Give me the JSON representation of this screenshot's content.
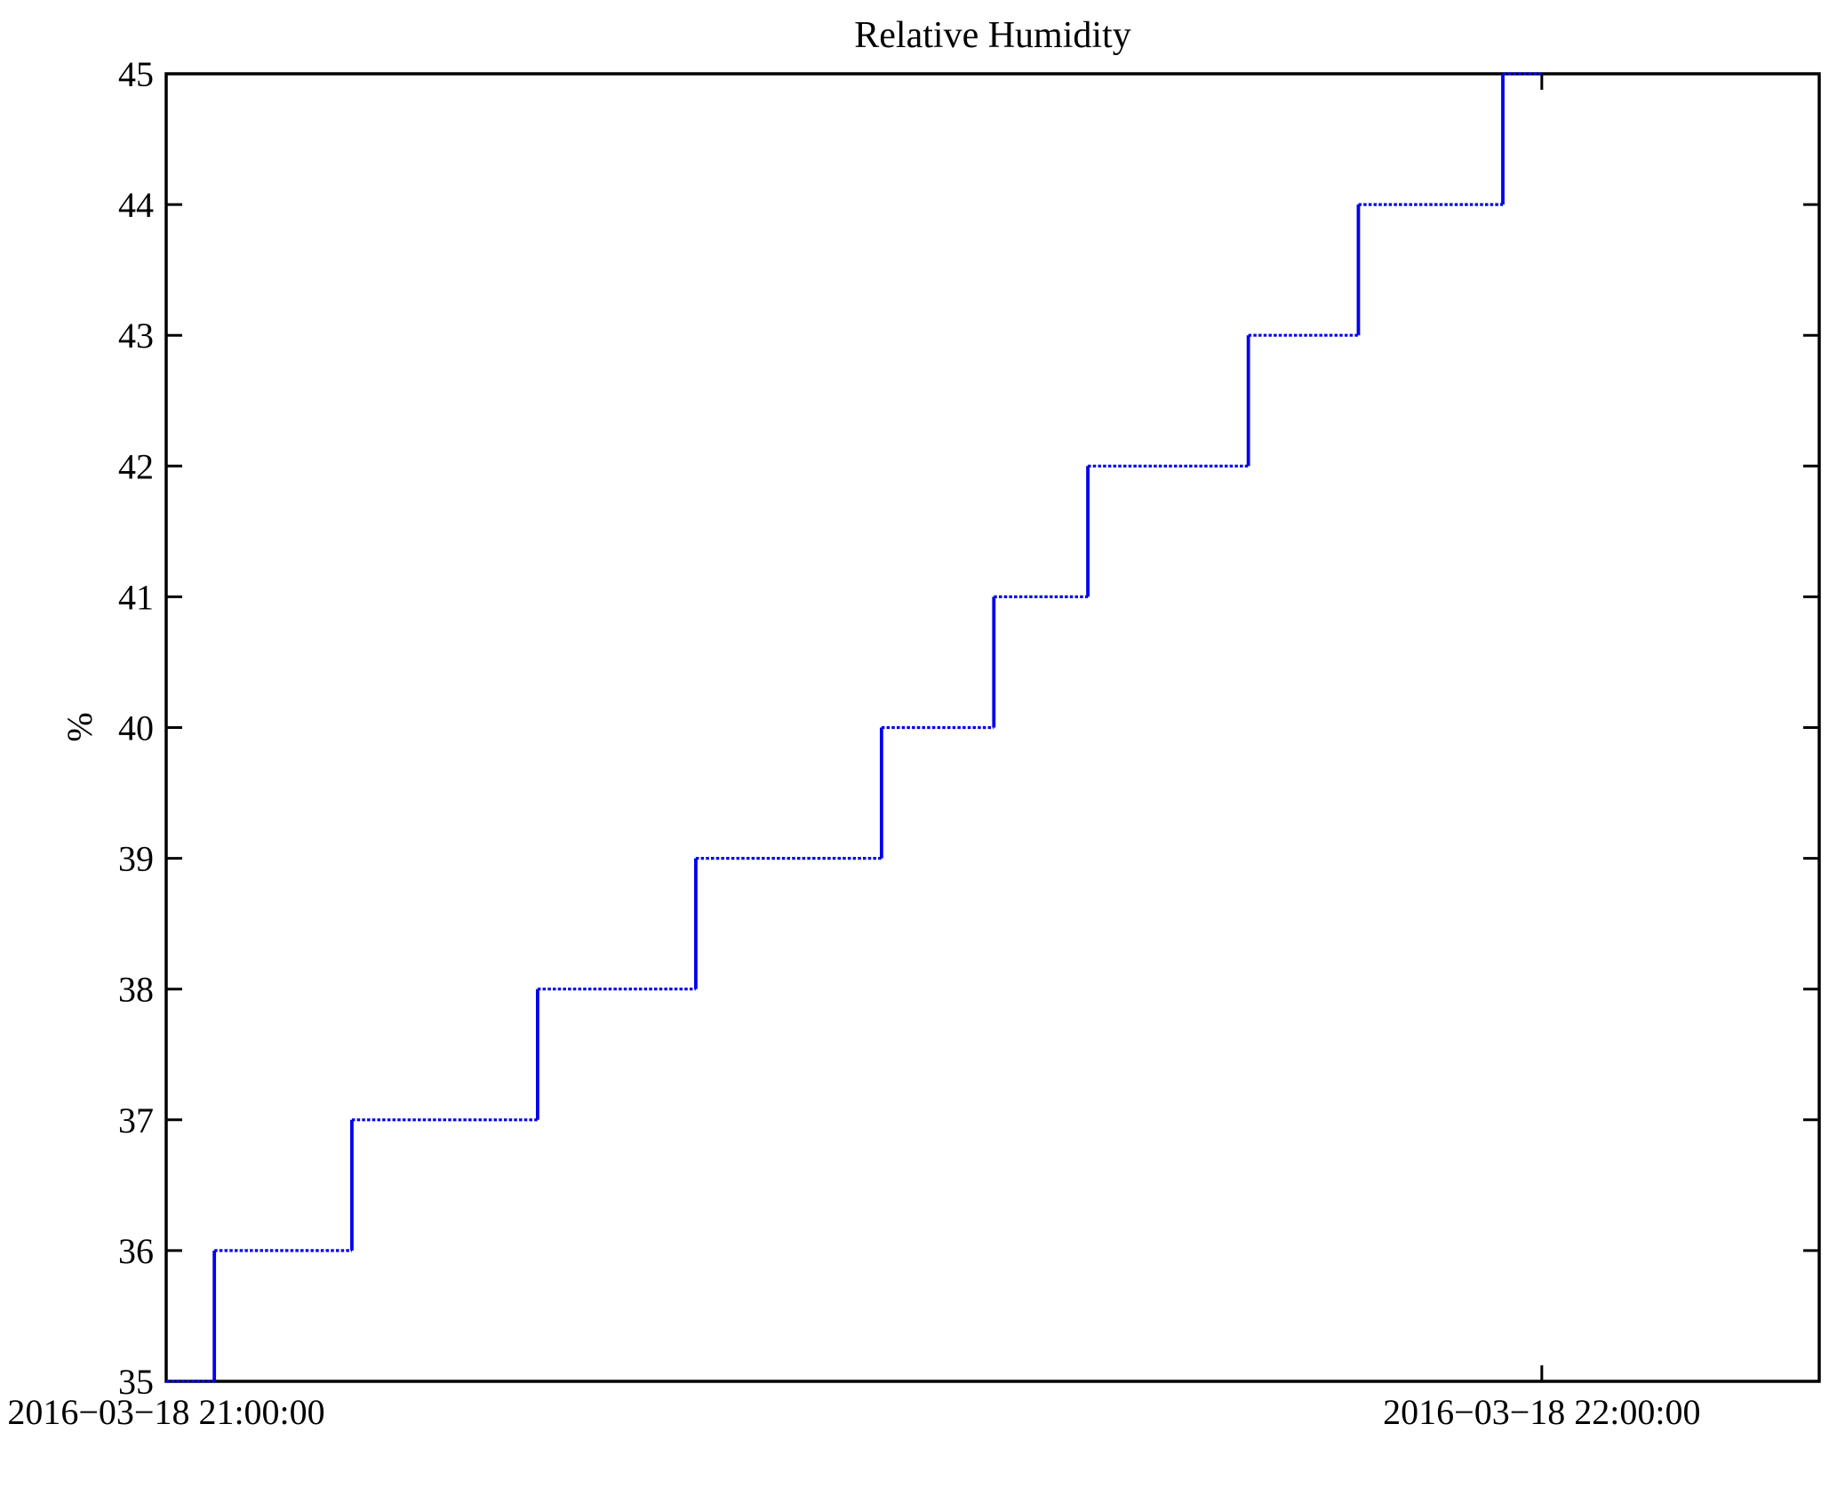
{
  "chart_data": {
    "type": "line",
    "title": "Relative Humidity",
    "ylabel": "%",
    "xlabel": "",
    "step": "after",
    "x_unit": "minutes since 2016-03-18 21:00:00",
    "xlim": [
      0,
      72.1
    ],
    "ylim": [
      35,
      45
    ],
    "grid": false,
    "legend": "none",
    "frame_color": "#000000",
    "background": "#ffffff",
    "y_ticks": [
      35,
      36,
      37,
      38,
      39,
      40,
      41,
      42,
      43,
      44,
      45
    ],
    "x_ticks": [
      {
        "t": 0,
        "label": "2016−03−18 21:00:00"
      },
      {
        "t": 60,
        "label": "2016−03−18 22:00:00"
      }
    ],
    "series": [
      {
        "name": "relative-humidity",
        "color": "#0000ee",
        "points": [
          [
            0.0,
            35
          ],
          [
            2.1,
            36
          ],
          [
            8.1,
            37
          ],
          [
            16.2,
            38
          ],
          [
            23.1,
            39
          ],
          [
            31.2,
            40
          ],
          [
            36.1,
            41
          ],
          [
            40.2,
            42
          ],
          [
            47.2,
            43
          ],
          [
            52.0,
            44
          ],
          [
            58.3,
            45
          ],
          [
            60.0,
            45
          ]
        ]
      }
    ]
  }
}
